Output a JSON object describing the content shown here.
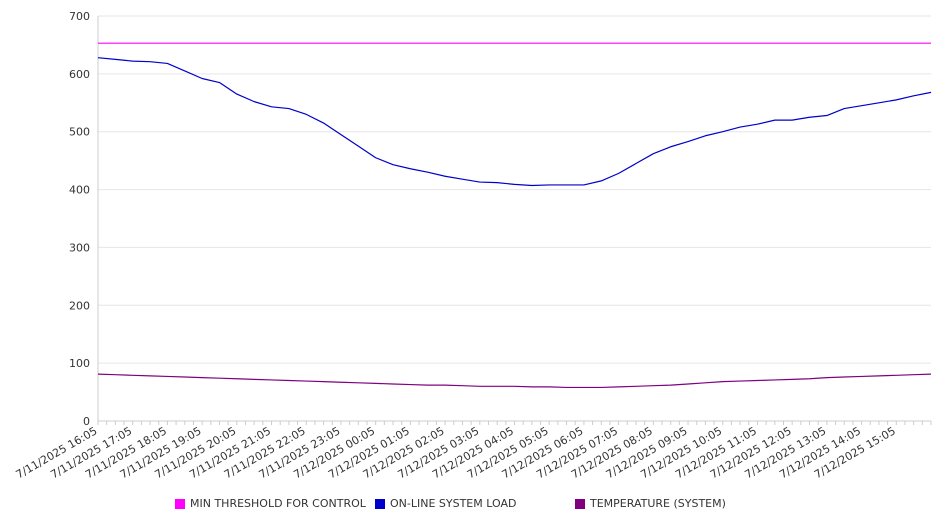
{
  "chart_data": {
    "type": "line",
    "title": "",
    "xlabel": "",
    "ylabel": "",
    "ylim": [
      0,
      700
    ],
    "yticks": [
      0,
      100,
      200,
      300,
      400,
      500,
      600,
      700
    ],
    "grid": true,
    "legend_position": "bottom",
    "x_tick_labels": [
      "7/11/2025 16:05",
      "7/11/2025 17:05",
      "7/11/2025 18:05",
      "7/11/2025 19:05",
      "7/11/2025 20:05",
      "7/11/2025 21:05",
      "7/11/2025 22:05",
      "7/11/2025 23:05",
      "7/12/2025 00:05",
      "7/12/2025 01:05",
      "7/12/2025 02:05",
      "7/12/2025 03:05",
      "7/12/2025 04:05",
      "7/12/2025 05:05",
      "7/12/2025 06:05",
      "7/12/2025 07:05",
      "7/12/2025 08:05",
      "7/12/2025 09:05",
      "7/12/2025 10:05",
      "7/12/2025 11:05",
      "7/12/2025 12:05",
      "7/12/2025 13:05",
      "7/12/2025 14:05",
      "7/12/2025 15:05"
    ],
    "x": [
      "7/11/2025 16:05",
      "7/11/2025 16:35",
      "7/11/2025 17:05",
      "7/11/2025 17:35",
      "7/11/2025 18:05",
      "7/11/2025 18:35",
      "7/11/2025 19:05",
      "7/11/2025 19:35",
      "7/11/2025 20:05",
      "7/11/2025 20:35",
      "7/11/2025 21:05",
      "7/11/2025 21:35",
      "7/11/2025 22:05",
      "7/11/2025 22:35",
      "7/11/2025 23:05",
      "7/11/2025 23:35",
      "7/12/2025 00:05",
      "7/12/2025 00:35",
      "7/12/2025 01:05",
      "7/12/2025 01:35",
      "7/12/2025 02:05",
      "7/12/2025 02:35",
      "7/12/2025 03:05",
      "7/12/2025 03:35",
      "7/12/2025 04:05",
      "7/12/2025 04:35",
      "7/12/2025 05:05",
      "7/12/2025 05:35",
      "7/12/2025 06:05",
      "7/12/2025 06:35",
      "7/12/2025 07:05",
      "7/12/2025 07:35",
      "7/12/2025 08:05",
      "7/12/2025 08:35",
      "7/12/2025 09:05",
      "7/12/2025 09:35",
      "7/12/2025 10:05",
      "7/12/2025 10:35",
      "7/12/2025 11:05",
      "7/12/2025 11:35",
      "7/12/2025 12:05",
      "7/12/2025 12:35",
      "7/12/2025 13:05",
      "7/12/2025 13:35",
      "7/12/2025 14:05",
      "7/12/2025 14:35",
      "7/12/2025 15:05",
      "7/12/2025 15:35",
      "7/12/2025 16:00"
    ],
    "series": [
      {
        "name": "MIN THRESHOLD FOR CONTROL",
        "color": "#ff00ff",
        "values": [
          653,
          653,
          653,
          653,
          653,
          653,
          653,
          653,
          653,
          653,
          653,
          653,
          653,
          653,
          653,
          653,
          653,
          653,
          653,
          653,
          653,
          653,
          653,
          653,
          653,
          653,
          653,
          653,
          653,
          653,
          653,
          653,
          653,
          653,
          653,
          653,
          653,
          653,
          653,
          653,
          653,
          653,
          653,
          653,
          653,
          653,
          653,
          653,
          653
        ]
      },
      {
        "name": "ON-LINE SYSTEM LOAD",
        "color": "#0000cc",
        "values": [
          628,
          625,
          622,
          621,
          618,
          605,
          592,
          585,
          565,
          552,
          543,
          540,
          530,
          515,
          495,
          475,
          455,
          443,
          436,
          430,
          423,
          418,
          413,
          412,
          409,
          407,
          408,
          408,
          408,
          415,
          428,
          445,
          462,
          474,
          483,
          493,
          500,
          508,
          513,
          520,
          520,
          525,
          528,
          540,
          545,
          550,
          555,
          562,
          568
        ]
      },
      {
        "name": "TEMPERATURE (SYSTEM)",
        "color": "#800080",
        "values": [
          81,
          80,
          79,
          78,
          77,
          76,
          75,
          74,
          73,
          72,
          71,
          70,
          69,
          68,
          67,
          66,
          65,
          64,
          63,
          62,
          62,
          61,
          60,
          60,
          60,
          59,
          59,
          58,
          58,
          58,
          59,
          60,
          61,
          62,
          64,
          66,
          68,
          69,
          70,
          71,
          72,
          73,
          75,
          76,
          77,
          78,
          79,
          80,
          81
        ]
      }
    ]
  }
}
